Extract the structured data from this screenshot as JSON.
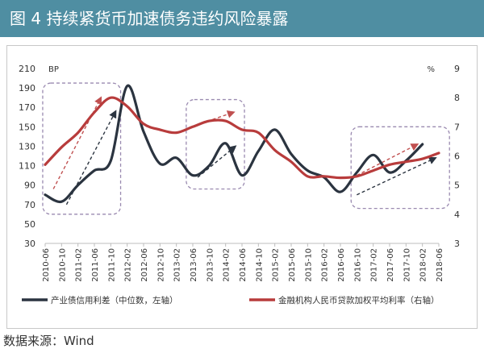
{
  "figure": {
    "title": "图 4  持续紧货币加速债务违约风险暴露",
    "source": "数据来源：Wind"
  },
  "chart_data": {
    "type": "line",
    "x": [
      "2010-06",
      "2010-10",
      "2011-02",
      "2011-06",
      "2011-10",
      "2012-02",
      "2012-06",
      "2012-10",
      "2013-02",
      "2013-06",
      "2013-10",
      "2014-02",
      "2014-06",
      "2014-10",
      "2015-02",
      "2015-06",
      "2015-10",
      "2016-02",
      "2016-06",
      "2016-10",
      "2017-02",
      "2017-06",
      "2017-10",
      "2018-02",
      "2018-06"
    ],
    "y_left": {
      "unit": "BP",
      "range": [
        30,
        210
      ],
      "ticks": [
        30,
        50,
        70,
        90,
        110,
        130,
        150,
        170,
        190,
        210
      ]
    },
    "y_right": {
      "unit": "%",
      "range": [
        3,
        9
      ],
      "ticks": [
        3,
        4,
        5,
        6,
        7,
        8,
        9
      ]
    },
    "series": [
      {
        "name": "产业债信用利差（中位数，左轴）",
        "axis": "left",
        "color": "#2b3440",
        "values": [
          80,
          73,
          90,
          105,
          115,
          192,
          145,
          112,
          118,
          100,
          110,
          133,
          100,
          125,
          147,
          122,
          105,
          98,
          83,
          103,
          121,
          103,
          115,
          132,
          null
        ]
      },
      {
        "name": "金融机构人民币贷款加权平均利率（右轴）",
        "axis": "right",
        "color": "#b83c3c",
        "values": [
          5.7,
          6.3,
          6.8,
          7.5,
          8.0,
          7.7,
          7.1,
          6.9,
          6.8,
          7.0,
          7.2,
          7.2,
          6.9,
          6.8,
          6.2,
          5.8,
          5.3,
          5.3,
          5.25,
          5.3,
          5.5,
          5.7,
          5.8,
          5.9,
          6.1
        ]
      }
    ],
    "legend": "bottom"
  }
}
